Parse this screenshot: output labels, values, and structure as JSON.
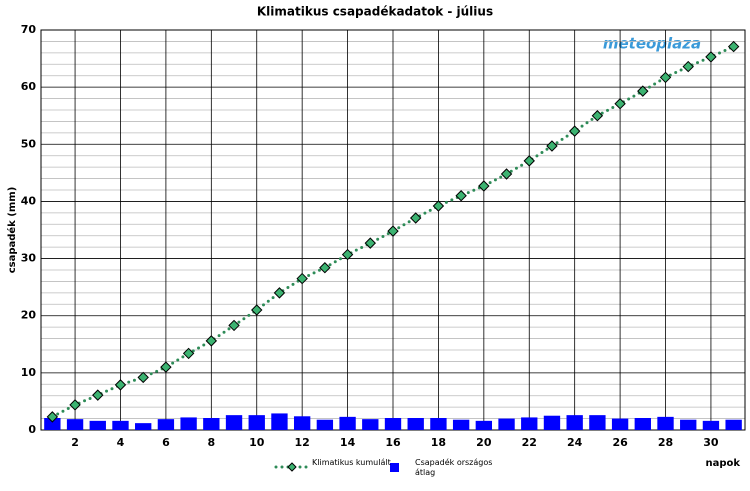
{
  "chart_data": {
    "type": "combo",
    "title": "Klimatikus csapadékadatok - július",
    "xlabel": "napok",
    "ylabel": "csapadék (mm)",
    "logo": "meteoplaza",
    "x": [
      1,
      2,
      3,
      4,
      5,
      6,
      7,
      8,
      9,
      10,
      11,
      12,
      13,
      14,
      15,
      16,
      17,
      18,
      19,
      20,
      21,
      22,
      23,
      24,
      25,
      26,
      27,
      28,
      29,
      30,
      31
    ],
    "xlim": [
      0.5,
      31.5
    ],
    "xticks": [
      2,
      4,
      6,
      8,
      10,
      12,
      14,
      16,
      18,
      20,
      22,
      24,
      26,
      28,
      30
    ],
    "ylim": [
      0,
      70
    ],
    "yticks": [
      0,
      10,
      20,
      30,
      40,
      50,
      60,
      70
    ],
    "y_minor_ticks": [
      2,
      4,
      6,
      8,
      12,
      14,
      16,
      18,
      22,
      24,
      26,
      28,
      32,
      34,
      36,
      38,
      42,
      44,
      46,
      48,
      52,
      54,
      56,
      58,
      62,
      64,
      66,
      68
    ],
    "grid": true,
    "series": [
      {
        "name": "Klimatikus kumulált",
        "type": "line",
        "color": "#2e8b57",
        "marker_color": "#3cb371",
        "values": [
          2.3,
          4.4,
          6.1,
          7.9,
          9.2,
          11.0,
          13.4,
          15.6,
          18.3,
          21.0,
          24.0,
          26.5,
          28.4,
          30.7,
          32.7,
          34.8,
          37.1,
          39.2,
          41.0,
          42.7,
          44.8,
          47.1,
          49.7,
          52.3,
          55.0,
          57.1,
          59.3,
          61.7,
          63.6,
          65.3,
          67.1
        ]
      },
      {
        "name": "Csapadék országos átlag",
        "type": "bar",
        "color": "#0000ff",
        "values": [
          2.1,
          1.9,
          1.6,
          1.6,
          1.2,
          1.9,
          2.2,
          2.1,
          2.6,
          2.6,
          2.9,
          2.4,
          1.8,
          2.3,
          1.9,
          2.1,
          2.1,
          2.1,
          1.8,
          1.6,
          2.0,
          2.2,
          2.5,
          2.6,
          2.6,
          2.0,
          2.1,
          2.3,
          1.8,
          1.6,
          1.8
        ]
      }
    ]
  }
}
